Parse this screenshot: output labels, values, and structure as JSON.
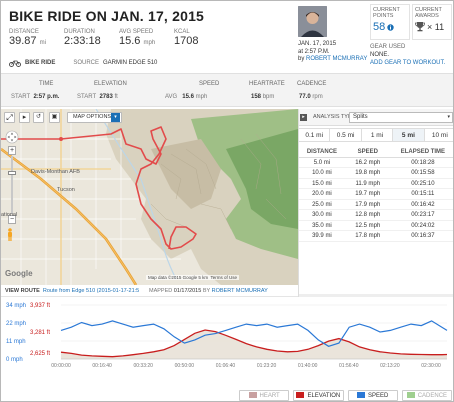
{
  "header": {
    "title": "BIKE RIDE ON JAN. 17, 2015",
    "stats": [
      {
        "label": "DISTANCE",
        "value": "39.87",
        "unit": "mi"
      },
      {
        "label": "DURATION",
        "value": "2:33:18",
        "unit": ""
      },
      {
        "label": "AVG SPEED",
        "value": "15.6",
        "unit": "mph"
      },
      {
        "label": "KCAL",
        "value": "1708",
        "unit": ""
      }
    ],
    "activity_type": "BIKE RIDE",
    "source_label": "SOURCE",
    "source_value": "GARMIN EDGE 510"
  },
  "user": {
    "date": "JAN. 17, 2015",
    "time": "at 2:57 P.M.",
    "by": "by",
    "name": "ROBERT MCMURRAY"
  },
  "points": {
    "label": "CURRENT POINTS",
    "value": "58"
  },
  "awards": {
    "label": "CURRENT AWARDS",
    "value": "× 11"
  },
  "gear": {
    "label": "GEAR USED",
    "value": "NONE.",
    "link": "ADD GEAR TO WORKOUT."
  },
  "summary": {
    "time_hdr": "TIME",
    "elev_hdr": "ELEVATION",
    "speed_hdr": "SPEED",
    "hr_hdr": "HEARTRATE",
    "cad_hdr": "CADENCE",
    "start1": "START",
    "start_time": "2:57 p.m.",
    "start2": "START",
    "start_elev": "2783",
    "start_elev_unit": "ft",
    "avg": "AVG",
    "speed": "15.6",
    "speed_unit": "mph",
    "hr": "158",
    "hr_unit": "bpm",
    "cad": "77.0",
    "cad_unit": "rpm"
  },
  "map": {
    "options": "MAP OPTIONS",
    "places": [
      "Davis-Monthan AFB",
      "Tucson"
    ],
    "place_partial": "ational",
    "google": "Google",
    "attribution": "Map data ©2015 Google   5 km",
    "terms": "Terms of Use",
    "footer_label": "VIEW ROUTE",
    "route_link": "Route from Edge 510 (2015-01-17-21:5",
    "mapped_label": "MAPPED",
    "mapped_date": "01/17/2015",
    "mapped_by": "BY",
    "mapped_name": "ROBERT MCMURRAY"
  },
  "analysis": {
    "label": "ANALYSIS TYPE:",
    "type": "Splits",
    "tabs": [
      "0.1 mi",
      "0.5 mi",
      "1 mi",
      "5 mi",
      "10 mi"
    ],
    "active_tab": 3,
    "columns": [
      "DISTANCE",
      "SPEED",
      "ELAPSED TIME"
    ],
    "rows": [
      [
        "5.0 mi",
        "16.2 mph",
        "00:18:28"
      ],
      [
        "10.0 mi",
        "19.8 mph",
        "00:15:58"
      ],
      [
        "15.0 mi",
        "11.9 mph",
        "00:25:10"
      ],
      [
        "20.0 mi",
        "19.7 mph",
        "00:15:11"
      ],
      [
        "25.0 mi",
        "17.9 mph",
        "00:16:42"
      ],
      [
        "30.0 mi",
        "12.8 mph",
        "00:23:17"
      ],
      [
        "35.0 mi",
        "12.5 mph",
        "00:24:02"
      ],
      [
        "39.9 mi",
        "17.8 mph",
        "00:16:37"
      ]
    ]
  },
  "chart_data": {
    "type": "line",
    "y_left_labels": [
      "34 mph",
      "22 mph",
      "11 mph",
      "0 mph"
    ],
    "y_elev_labels": [
      "3,937 ft",
      "3,281 ft",
      "2,625 ft"
    ],
    "x_ticks": [
      "00:00:00",
      "00:16:40",
      "00:33:20",
      "00:50:00",
      "01:06:40",
      "01:23:20",
      "01:40:00",
      "01:56:40",
      "02:13:20",
      "02:30:00"
    ],
    "x": [
      0,
      4,
      8,
      12,
      16,
      20,
      24,
      28,
      32,
      36,
      40,
      44,
      48,
      52,
      56,
      60,
      64,
      68,
      72,
      76,
      80,
      84,
      88,
      92,
      96,
      100,
      104,
      108,
      112,
      116,
      120,
      124,
      128,
      132,
      136,
      140,
      144,
      148,
      150
    ],
    "series": [
      {
        "name": "SPEED",
        "color": "#2a78d6",
        "unit": "mph",
        "values": [
          18,
          20,
          23,
          21,
          22,
          24,
          22,
          20,
          21,
          22,
          19,
          14,
          10,
          12,
          15,
          16,
          18,
          20,
          22,
          21,
          22,
          20,
          21,
          22,
          18,
          12,
          8,
          10,
          20,
          22,
          20,
          17,
          18,
          20,
          22,
          21,
          24,
          20,
          18
        ]
      },
      {
        "name": "ELEVATION",
        "color": "#c81e1e",
        "unit": "ft",
        "values": [
          2790,
          2760,
          2720,
          2700,
          2690,
          2680,
          2700,
          2730,
          2760,
          2800,
          2850,
          2950,
          3100,
          3250,
          3330,
          3290,
          3200,
          3100,
          3000,
          2920,
          2860,
          2820,
          2800,
          2810,
          2860,
          2950,
          3060,
          3120,
          3040,
          2920,
          2850,
          2800,
          2770,
          2750,
          2740,
          2735,
          2730,
          2730,
          2735
        ]
      }
    ],
    "speed_range": [
      0,
      34
    ],
    "elev_range": [
      2625,
      3937
    ],
    "legend": [
      "HEART RATE",
      "ELEVATION",
      "SPEED",
      "CADENCE"
    ],
    "legend_colors": [
      "#c8a0a0",
      "#c81e1e",
      "#2a78d6",
      "#9fcf8f"
    ],
    "legend_placement": "bottom-right"
  }
}
